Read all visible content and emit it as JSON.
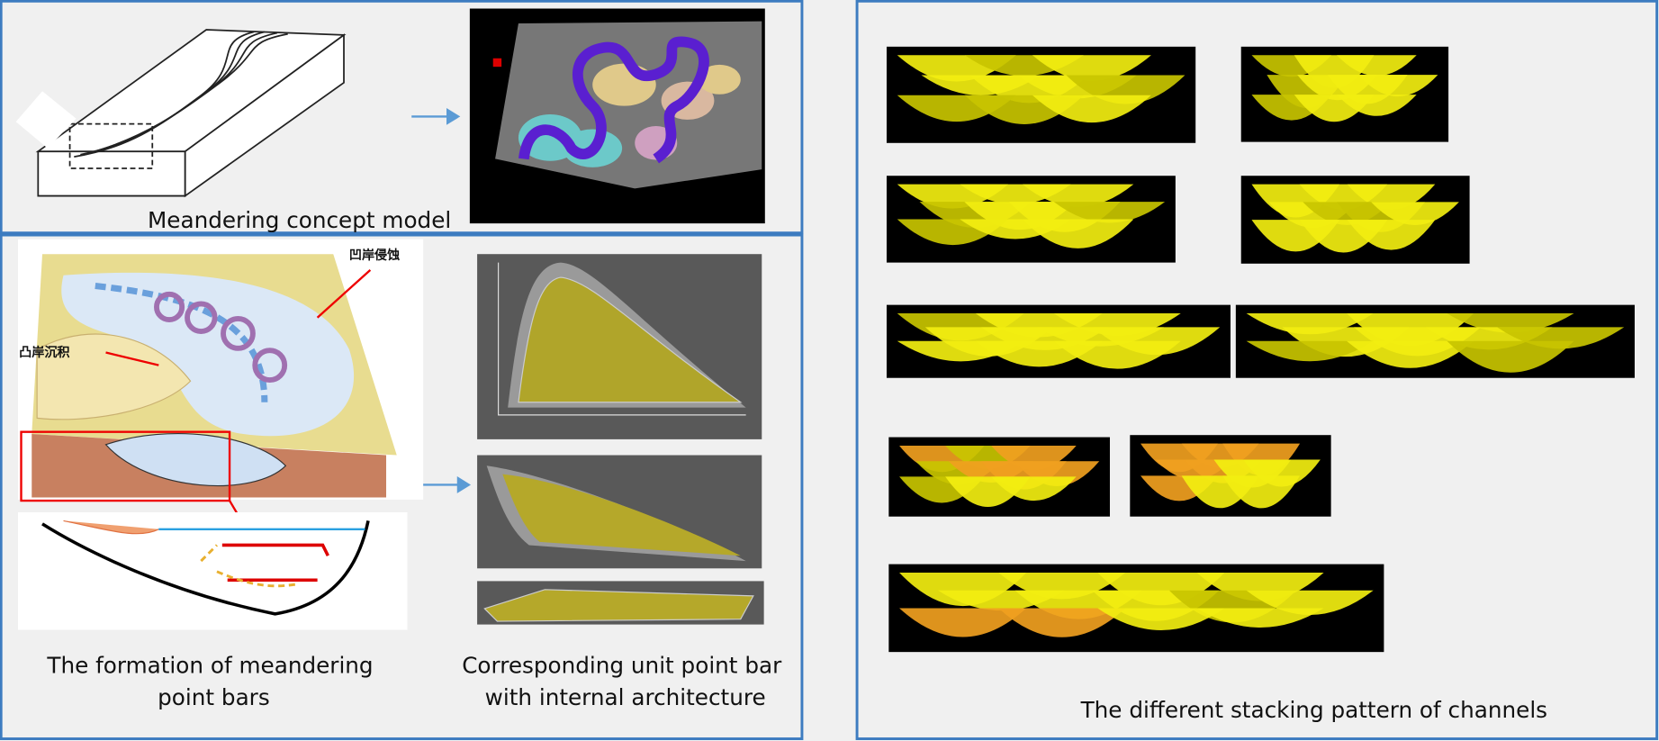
{
  "panels": {
    "concept": {
      "caption": "Meandering concept model"
    },
    "formation": {
      "caption_lines": [
        "The formation of meandering",
        "point bars"
      ],
      "label_erosion": "凹岸侵蚀",
      "label_deposition": "凸岸沉积"
    },
    "unit": {
      "caption_lines": [
        "Corresponding unit point bar",
        "with internal architecture"
      ]
    },
    "stacking": {
      "caption": "The different stacking pattern of channels"
    }
  }
}
